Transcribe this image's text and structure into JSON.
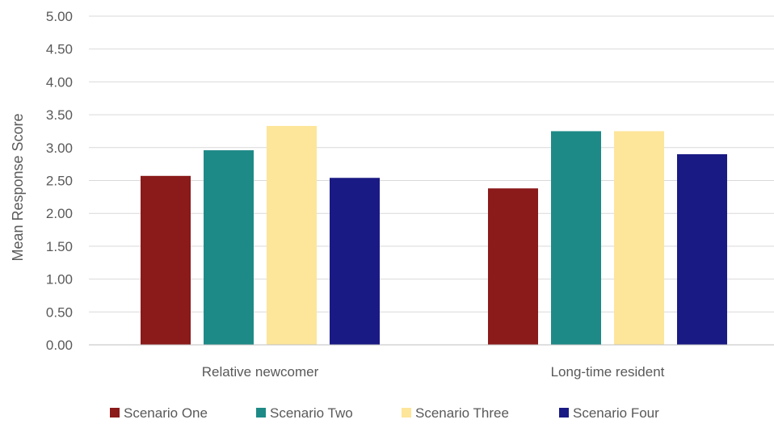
{
  "chart_data": {
    "type": "bar",
    "ylabel": "Mean Response Score",
    "ylim": [
      0,
      5
    ],
    "yticks": [
      "0.00",
      "0.50",
      "1.00",
      "1.50",
      "2.00",
      "2.50",
      "3.00",
      "3.50",
      "4.00",
      "4.50",
      "5.00"
    ],
    "ytick_values": [
      0,
      0.5,
      1,
      1.5,
      2,
      2.5,
      3,
      3.5,
      4,
      4.5,
      5
    ],
    "categories": [
      "Relative newcomer",
      "Long-time resident"
    ],
    "series": [
      {
        "name": "Scenario One",
        "color": "#8b1a1a",
        "values": [
          2.57,
          2.38
        ]
      },
      {
        "name": "Scenario Two",
        "color": "#1e8a87",
        "values": [
          2.96,
          3.25
        ]
      },
      {
        "name": "Scenario Three",
        "color": "#fde59a",
        "values": [
          3.33,
          3.25
        ]
      },
      {
        "name": "Scenario Four",
        "color": "#1a1a85",
        "values": [
          2.54,
          2.9
        ]
      }
    ],
    "grid": true,
    "legend_position": "bottom"
  }
}
